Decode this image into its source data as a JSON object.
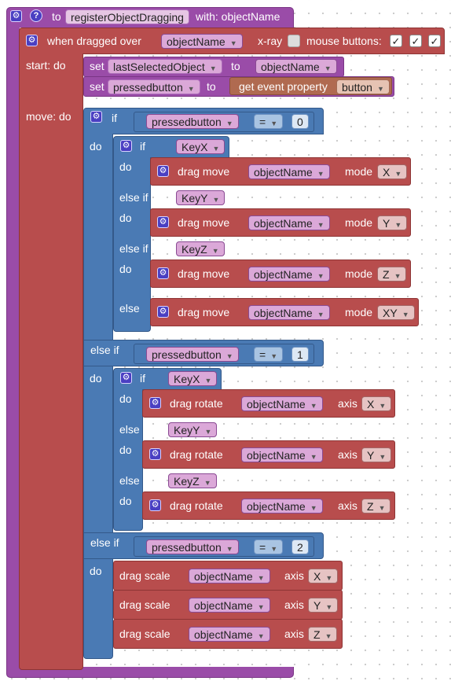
{
  "header": {
    "to": "to",
    "fn": "registerObjectDragging",
    "with": "with: objectName"
  },
  "dragged": {
    "label": "when dragged over",
    "param": "objectName",
    "xray": "x-ray",
    "mouse": "mouse buttons:",
    "cb1": "✓",
    "cb2": "✓",
    "cb3": "✓"
  },
  "start": {
    "label": "start: do",
    "set": "set",
    "var1": "lastSelectedObject",
    "to": "to",
    "val1": "objectName",
    "var2": "pressedbutton",
    "get": "get event property",
    "prop": "button"
  },
  "move": {
    "label": "move: do"
  },
  "k": {
    "if": "if",
    "do": "do",
    "elseif": "else if",
    "else": "else",
    "eq": "=",
    "pb": "pressedbutton",
    "obj": "objectName",
    "n0": "0",
    "n1": "1",
    "n2": "2",
    "keyx": "KeyX",
    "keyy": "KeyY",
    "keyz": "KeyZ",
    "dm": "drag move",
    "mode": "mode",
    "dr": "drag rotate",
    "axis": "axis",
    "ds": "drag scale",
    "x": "X",
    "y": "Y",
    "z": "Z",
    "xy": "XY"
  }
}
